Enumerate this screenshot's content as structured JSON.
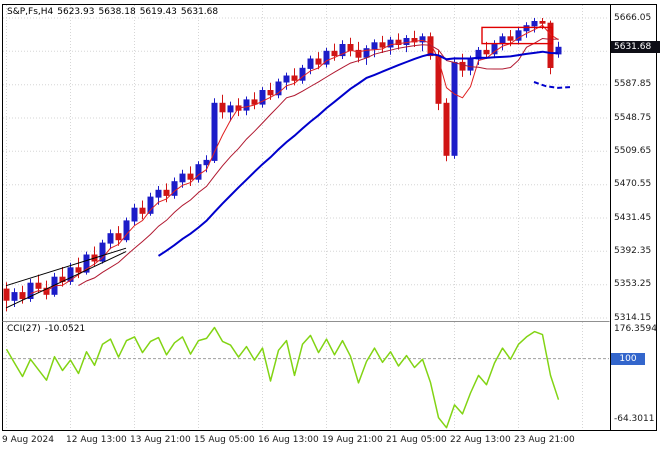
{
  "header": {
    "symbol_period": "S&P,Fs,H4",
    "open": "5623.93",
    "high": "5638.18",
    "low": "5619.43",
    "close": "5631.68"
  },
  "price_axis": {
    "labels": [
      "5666.05",
      "5587.85",
      "5548.75",
      "5509.65",
      "5470.55",
      "5431.45",
      "5392.35",
      "5353.25",
      "5314.15"
    ],
    "current_price_tag": "5631.68"
  },
  "time_axis": {
    "labels": [
      {
        "text": "9 Aug 2024",
        "bar": 0
      },
      {
        "text": "12 Aug 13:00",
        "bar": 8
      },
      {
        "text": "13 Aug 21:00",
        "bar": 16
      },
      {
        "text": "15 Aug 05:00",
        "bar": 24
      },
      {
        "text": "16 Aug 13:00",
        "bar": 32
      },
      {
        "text": "19 Aug 21:00",
        "bar": 40
      },
      {
        "text": "21 Aug 05:00",
        "bar": 48
      },
      {
        "text": "22 Aug 13:00",
        "bar": 56
      },
      {
        "text": "23 Aug 21:00",
        "bar": 64
      }
    ],
    "unlabeled_grid_bars": [
      72
    ]
  },
  "indicator_panel": {
    "name_label": "CCI(27)",
    "value_label": "-10.0521",
    "axis_top_label": "176.3594",
    "axis_bottom_label": "-64.3011",
    "level_tag": "100"
  },
  "colors": {
    "bull_candle": "#1c1cc8",
    "bear_candle": "#d01414",
    "trend_blue": "#0000cc",
    "cci_line": "#82d414",
    "grid": "#d6d6d6",
    "price_tag_bg": "#0e0e16",
    "level_tag_bg": "#3366cc",
    "object_red": "#e00000",
    "frame": "#000000",
    "pane_separator": "#909090"
  },
  "chart_data": {
    "type": "candlestick",
    "title": "S&P,Fs,H4",
    "timeframe": "H4",
    "ylim": [
      5314.15,
      5666.05
    ],
    "grid_step": 39.1,
    "candles": [
      [
        5348,
        5356,
        5322,
        5335
      ],
      [
        5335,
        5349,
        5327,
        5344
      ],
      [
        5344,
        5352,
        5331,
        5337
      ],
      [
        5337,
        5360,
        5333,
        5355
      ],
      [
        5355,
        5365,
        5344,
        5349
      ],
      [
        5349,
        5358,
        5336,
        5342
      ],
      [
        5342,
        5367,
        5339,
        5362
      ],
      [
        5362,
        5374,
        5351,
        5357
      ],
      [
        5357,
        5379,
        5353,
        5373
      ],
      [
        5373,
        5385,
        5361,
        5368
      ],
      [
        5368,
        5392,
        5365,
        5388
      ],
      [
        5388,
        5398,
        5375,
        5381
      ],
      [
        5381,
        5406,
        5378,
        5402
      ],
      [
        5402,
        5418,
        5395,
        5413
      ],
      [
        5413,
        5422,
        5399,
        5406
      ],
      [
        5406,
        5432,
        5403,
        5428
      ],
      [
        5428,
        5448,
        5423,
        5443
      ],
      [
        5443,
        5452,
        5430,
        5437
      ],
      [
        5437,
        5461,
        5434,
        5456
      ],
      [
        5456,
        5469,
        5447,
        5464
      ],
      [
        5464,
        5472,
        5450,
        5458
      ],
      [
        5458,
        5479,
        5454,
        5474
      ],
      [
        5474,
        5488,
        5467,
        5483
      ],
      [
        5483,
        5492,
        5469,
        5477
      ],
      [
        5477,
        5498,
        5473,
        5494
      ],
      [
        5494,
        5505,
        5485,
        5499
      ],
      [
        5499,
        5572,
        5496,
        5566
      ],
      [
        5566,
        5576,
        5548,
        5556
      ],
      [
        5556,
        5568,
        5545,
        5563
      ],
      [
        5563,
        5572,
        5551,
        5558
      ],
      [
        5558,
        5574,
        5552,
        5570
      ],
      [
        5570,
        5579,
        5559,
        5565
      ],
      [
        5565,
        5585,
        5561,
        5581
      ],
      [
        5581,
        5590,
        5570,
        5576
      ],
      [
        5576,
        5595,
        5572,
        5591
      ],
      [
        5591,
        5602,
        5582,
        5598
      ],
      [
        5598,
        5607,
        5587,
        5593
      ],
      [
        5593,
        5611,
        5589,
        5607
      ],
      [
        5607,
        5622,
        5600,
        5618
      ],
      [
        5618,
        5626,
        5606,
        5612
      ],
      [
        5612,
        5631,
        5608,
        5627
      ],
      [
        5627,
        5636,
        5616,
        5622
      ],
      [
        5622,
        5640,
        5618,
        5635
      ],
      [
        5635,
        5643,
        5621,
        5628
      ],
      [
        5628,
        5638,
        5614,
        5620
      ],
      [
        5620,
        5634,
        5611,
        5630
      ],
      [
        5630,
        5641,
        5620,
        5637
      ],
      [
        5637,
        5645,
        5625,
        5632
      ],
      [
        5632,
        5644,
        5623,
        5640
      ],
      [
        5640,
        5648,
        5629,
        5635
      ],
      [
        5635,
        5646,
        5626,
        5642
      ],
      [
        5642,
        5651,
        5632,
        5638
      ],
      [
        5638,
        5648,
        5627,
        5644
      ],
      [
        5644,
        5649,
        5617,
        5622
      ],
      [
        5622,
        5628,
        5558,
        5566
      ],
      [
        5566,
        5572,
        5498,
        5505
      ],
      [
        5505,
        5620,
        5501,
        5614
      ],
      [
        5614,
        5624,
        5597,
        5605
      ],
      [
        5605,
        5622,
        5599,
        5618
      ],
      [
        5618,
        5632,
        5611,
        5628
      ],
      [
        5628,
        5638,
        5618,
        5624
      ],
      [
        5624,
        5640,
        5619,
        5636
      ],
      [
        5636,
        5648,
        5628,
        5644
      ],
      [
        5644,
        5652,
        5633,
        5640
      ],
      [
        5640,
        5655,
        5635,
        5651
      ],
      [
        5651,
        5661,
        5643,
        5657
      ],
      [
        5657,
        5666,
        5649,
        5662
      ],
      [
        5662,
        5666,
        5653,
        5660
      ],
      [
        5660,
        5663,
        5600,
        5608
      ],
      [
        5623.93,
        5638.18,
        5619.43,
        5631.68
      ]
    ],
    "overlays": [
      {
        "name": "ma-fast-red",
        "period": 4,
        "color": "#e02020",
        "width": 1
      },
      {
        "name": "ma-mid-red",
        "period": 10,
        "color": "#b01830",
        "width": 1
      },
      {
        "name": "ma-slow-blue",
        "period": 20,
        "color": "#0000cc",
        "width": 2
      }
    ],
    "objects": {
      "rectangle": {
        "bar_from": 59.5,
        "bar_to": 68.3,
        "price_top": 5655,
        "price_bottom": 5636
      },
      "trendlines": [
        {
          "bar_from": 0,
          "price_from": 5326,
          "bar_to": 15,
          "price_to": 5392
        },
        {
          "bar_from": 0,
          "price_from": 5352,
          "bar_to": 15,
          "price_to": 5396
        }
      ],
      "dashed_segment": {
        "points": [
          [
            66,
            5591
          ],
          [
            67.5,
            5586
          ],
          [
            69,
            5584
          ],
          [
            70.5,
            5585
          ]
        ]
      }
    },
    "cci": {
      "period": 27,
      "last_value": -10.0521,
      "levels": [
        100
      ],
      "ylim": [
        -88,
        190
      ],
      "values": [
        125,
        88,
        52,
        98,
        70,
        42,
        105,
        68,
        96,
        60,
        118,
        82,
        138,
        152,
        104,
        148,
        158,
        116,
        146,
        156,
        110,
        142,
        158,
        112,
        148,
        154,
        183,
        146,
        136,
        104,
        132,
        96,
        128,
        40,
        122,
        148,
        55,
        138,
        162,
        116,
        152,
        110,
        148,
        106,
        35,
        92,
        128,
        90,
        118,
        80,
        108,
        76,
        98,
        36,
        -58,
        -85,
        -24,
        -48,
        8,
        55,
        30,
        88,
        128,
        98,
        138,
        158,
        172,
        164,
        55,
        -10.05
      ]
    }
  }
}
